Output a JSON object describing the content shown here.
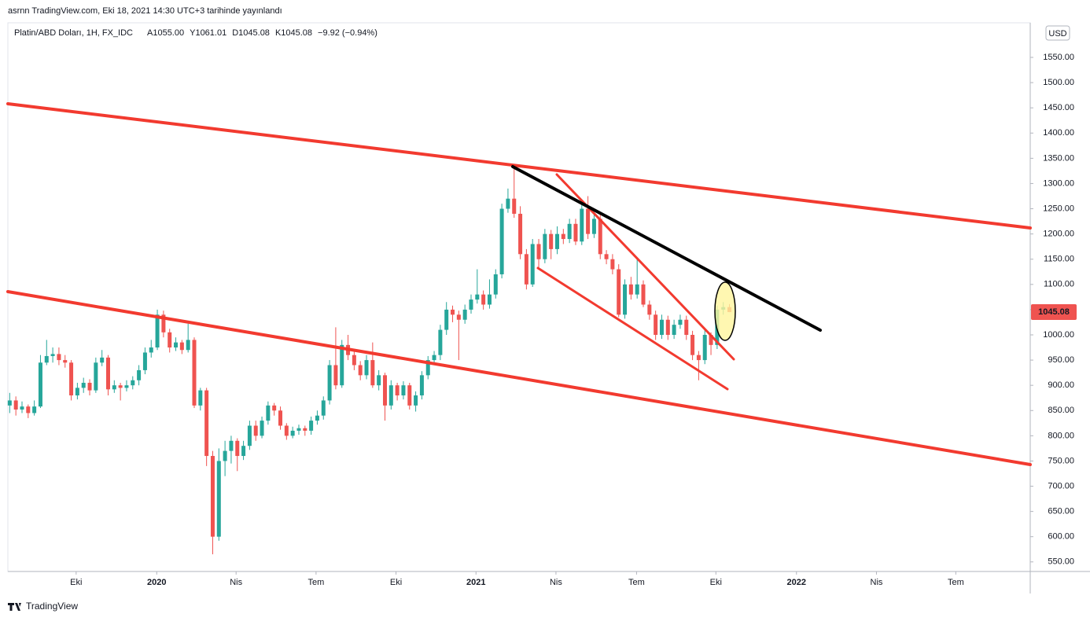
{
  "header": "asrnn TradingView.com, Eki 18, 2021 14:30 UTC+3 tarihinde yayınlandı",
  "footer": "TradingView",
  "chart_data": {
    "type": "candlestick",
    "symbol": "Platin/ABD Doları, 1H, FX_IDC",
    "ohlc_legend": [
      "A1055.00",
      "Y1061.01",
      "D1045.08",
      "K1045.08",
      "−9.92 (−0.94%)"
    ],
    "currency": "USD",
    "last_price_label": "1045.08",
    "up_color": "#26a69a",
    "down_color": "#ef5350",
    "grid": false,
    "ylim": [
      531,
      1617
    ],
    "yticks": [
      {
        "value": 550,
        "label": "550.00"
      },
      {
        "value": 600,
        "label": "600.00"
      },
      {
        "value": 650,
        "label": "650.00"
      },
      {
        "value": 700,
        "label": "700.00"
      },
      {
        "value": 750,
        "label": "750.00"
      },
      {
        "value": 800,
        "label": "800.00"
      },
      {
        "value": 850,
        "label": "850.00"
      },
      {
        "value": 900,
        "label": "900.00"
      },
      {
        "value": 950,
        "label": "950.00"
      },
      {
        "value": 1000,
        "label": "1000.00"
      },
      {
        "value": 1050,
        "label": "1050.00"
      },
      {
        "value": 1100,
        "label": "1100.00"
      },
      {
        "value": 1150,
        "label": "1150.00"
      },
      {
        "value": 1200,
        "label": "1200.00"
      },
      {
        "value": 1250,
        "label": "1250.00"
      },
      {
        "value": 1300,
        "label": "1300.00"
      },
      {
        "value": 1350,
        "label": "1350.00"
      },
      {
        "value": 1400,
        "label": "1400.00"
      },
      {
        "value": 1450,
        "label": "1450.00"
      },
      {
        "value": 1500,
        "label": "1500.00"
      },
      {
        "value": 1550,
        "label": "1550.00"
      }
    ],
    "xlim": [
      -0.3,
      165.9
    ],
    "xticks": [
      {
        "value": 10.8,
        "label": "Eki"
      },
      {
        "value": 23.9,
        "label": "2020"
      },
      {
        "value": 36.8,
        "label": "Nis"
      },
      {
        "value": 49.8,
        "label": "Tem"
      },
      {
        "value": 62.8,
        "label": "Eki"
      },
      {
        "value": 75.8,
        "label": "2021"
      },
      {
        "value": 88.8,
        "label": "Nis"
      },
      {
        "value": 101.9,
        "label": "Tem"
      },
      {
        "value": 114.8,
        "label": "Eki"
      },
      {
        "value": 127.9,
        "label": "2022"
      },
      {
        "value": 140.9,
        "label": "Nis"
      },
      {
        "value": 153.8,
        "label": "Tem"
      }
    ],
    "candles": [
      [
        860,
        885,
        845,
        870
      ],
      [
        870,
        878,
        840,
        852
      ],
      [
        852,
        868,
        845,
        858
      ],
      [
        858,
        862,
        835,
        845
      ],
      [
        845,
        870,
        840,
        858
      ],
      [
        858,
        960,
        855,
        945
      ],
      [
        945,
        990,
        940,
        958
      ],
      [
        958,
        975,
        945,
        962
      ],
      [
        962,
        975,
        940,
        950
      ],
      [
        950,
        960,
        935,
        945
      ],
      [
        945,
        950,
        870,
        880
      ],
      [
        880,
        905,
        872,
        895
      ],
      [
        895,
        915,
        885,
        905
      ],
      [
        905,
        912,
        880,
        890
      ],
      [
        890,
        955,
        885,
        945
      ],
      [
        945,
        970,
        938,
        955
      ],
      [
        955,
        960,
        880,
        892
      ],
      [
        892,
        910,
        885,
        900
      ],
      [
        900,
        905,
        870,
        895
      ],
      [
        895,
        910,
        888,
        900
      ],
      [
        900,
        918,
        892,
        910
      ],
      [
        910,
        940,
        900,
        930
      ],
      [
        930,
        975,
        922,
        965
      ],
      [
        965,
        990,
        955,
        975
      ],
      [
        975,
        1050,
        970,
        1040
      ],
      [
        1040,
        1048,
        995,
        1005
      ],
      [
        1005,
        1012,
        965,
        975
      ],
      [
        975,
        995,
        968,
        985
      ],
      [
        985,
        990,
        962,
        970
      ],
      [
        970,
        1022,
        965,
        990
      ],
      [
        990,
        995,
        855,
        860
      ],
      [
        860,
        895,
        850,
        890
      ],
      [
        890,
        895,
        740,
        760
      ],
      [
        760,
        770,
        565,
        600
      ],
      [
        600,
        775,
        592,
        750
      ],
      [
        750,
        790,
        720,
        770
      ],
      [
        770,
        800,
        745,
        790
      ],
      [
        790,
        795,
        730,
        760
      ],
      [
        760,
        790,
        752,
        780
      ],
      [
        780,
        830,
        772,
        820
      ],
      [
        820,
        830,
        790,
        800
      ],
      [
        800,
        838,
        795,
        830
      ],
      [
        830,
        868,
        822,
        860
      ],
      [
        860,
        865,
        840,
        850
      ],
      [
        850,
        858,
        812,
        820
      ],
      [
        820,
        825,
        792,
        800
      ],
      [
        800,
        818,
        795,
        810
      ],
      [
        810,
        822,
        802,
        815
      ],
      [
        815,
        820,
        800,
        810
      ],
      [
        810,
        838,
        802,
        830
      ],
      [
        830,
        850,
        822,
        840
      ],
      [
        840,
        878,
        832,
        870
      ],
      [
        870,
        950,
        862,
        940
      ],
      [
        940,
        1015,
        892,
        900
      ],
      [
        900,
        990,
        895,
        980
      ],
      [
        980,
        1000,
        950,
        960
      ],
      [
        960,
        968,
        930,
        940
      ],
      [
        940,
        948,
        910,
        920
      ],
      [
        920,
        960,
        912,
        950
      ],
      [
        950,
        985,
        895,
        900
      ],
      [
        900,
        930,
        890,
        920
      ],
      [
        920,
        925,
        830,
        860
      ],
      [
        860,
        910,
        852,
        900
      ],
      [
        900,
        905,
        870,
        880
      ],
      [
        880,
        908,
        872,
        900
      ],
      [
        900,
        905,
        852,
        860
      ],
      [
        860,
        888,
        848,
        880
      ],
      [
        880,
        928,
        872,
        920
      ],
      [
        920,
        958,
        912,
        950
      ],
      [
        950,
        968,
        940,
        960
      ],
      [
        960,
        1020,
        950,
        1010
      ],
      [
        1010,
        1065,
        1000,
        1050
      ],
      [
        1050,
        1058,
        1025,
        1040
      ],
      [
        1040,
        1048,
        950,
        1030
      ],
      [
        1030,
        1060,
        1022,
        1050
      ],
      [
        1050,
        1080,
        1042,
        1070
      ],
      [
        1070,
        1130,
        1062,
        1080
      ],
      [
        1080,
        1088,
        1050,
        1060
      ],
      [
        1060,
        1110,
        1052,
        1080
      ],
      [
        1080,
        1130,
        1072,
        1120
      ],
      [
        1120,
        1260,
        1112,
        1250
      ],
      [
        1250,
        1290,
        1242,
        1270
      ],
      [
        1270,
        1338,
        1232,
        1240
      ],
      [
        1240,
        1255,
        1150,
        1160
      ],
      [
        1160,
        1170,
        1090,
        1100
      ],
      [
        1100,
        1190,
        1095,
        1180
      ],
      [
        1180,
        1190,
        1130,
        1150
      ],
      [
        1150,
        1210,
        1142,
        1200
      ],
      [
        1200,
        1208,
        1150,
        1170
      ],
      [
        1170,
        1215,
        1160,
        1200
      ],
      [
        1200,
        1210,
        1180,
        1190
      ],
      [
        1190,
        1230,
        1182,
        1220
      ],
      [
        1220,
        1230,
        1178,
        1185
      ],
      [
        1185,
        1260,
        1178,
        1250
      ],
      [
        1250,
        1275,
        1190,
        1200
      ],
      [
        1200,
        1240,
        1192,
        1230
      ],
      [
        1230,
        1238,
        1150,
        1160
      ],
      [
        1160,
        1168,
        1140,
        1150
      ],
      [
        1150,
        1160,
        1120,
        1130
      ],
      [
        1130,
        1140,
        1035,
        1040
      ],
      [
        1040,
        1110,
        1032,
        1100
      ],
      [
        1100,
        1115,
        1070,
        1080
      ],
      [
        1080,
        1150,
        1072,
        1100
      ],
      [
        1100,
        1108,
        1055,
        1060
      ],
      [
        1060,
        1068,
        1030,
        1040
      ],
      [
        1040,
        1048,
        990,
        1000
      ],
      [
        1000,
        1040,
        992,
        1030
      ],
      [
        1030,
        1038,
        990,
        1000
      ],
      [
        1000,
        1030,
        992,
        1020
      ],
      [
        1020,
        1040,
        1012,
        1030
      ],
      [
        1030,
        1038,
        990,
        1000
      ],
      [
        1000,
        1008,
        950,
        960
      ],
      [
        960,
        968,
        910,
        950
      ],
      [
        950,
        1010,
        942,
        1000
      ],
      [
        1000,
        1005,
        960,
        980
      ],
      [
        980,
        1058,
        972,
        1050
      ],
      [
        1050,
        1065,
        1040,
        1055
      ],
      [
        1055,
        1061.01,
        1045.08,
        1045.08
      ]
    ]
  }
}
